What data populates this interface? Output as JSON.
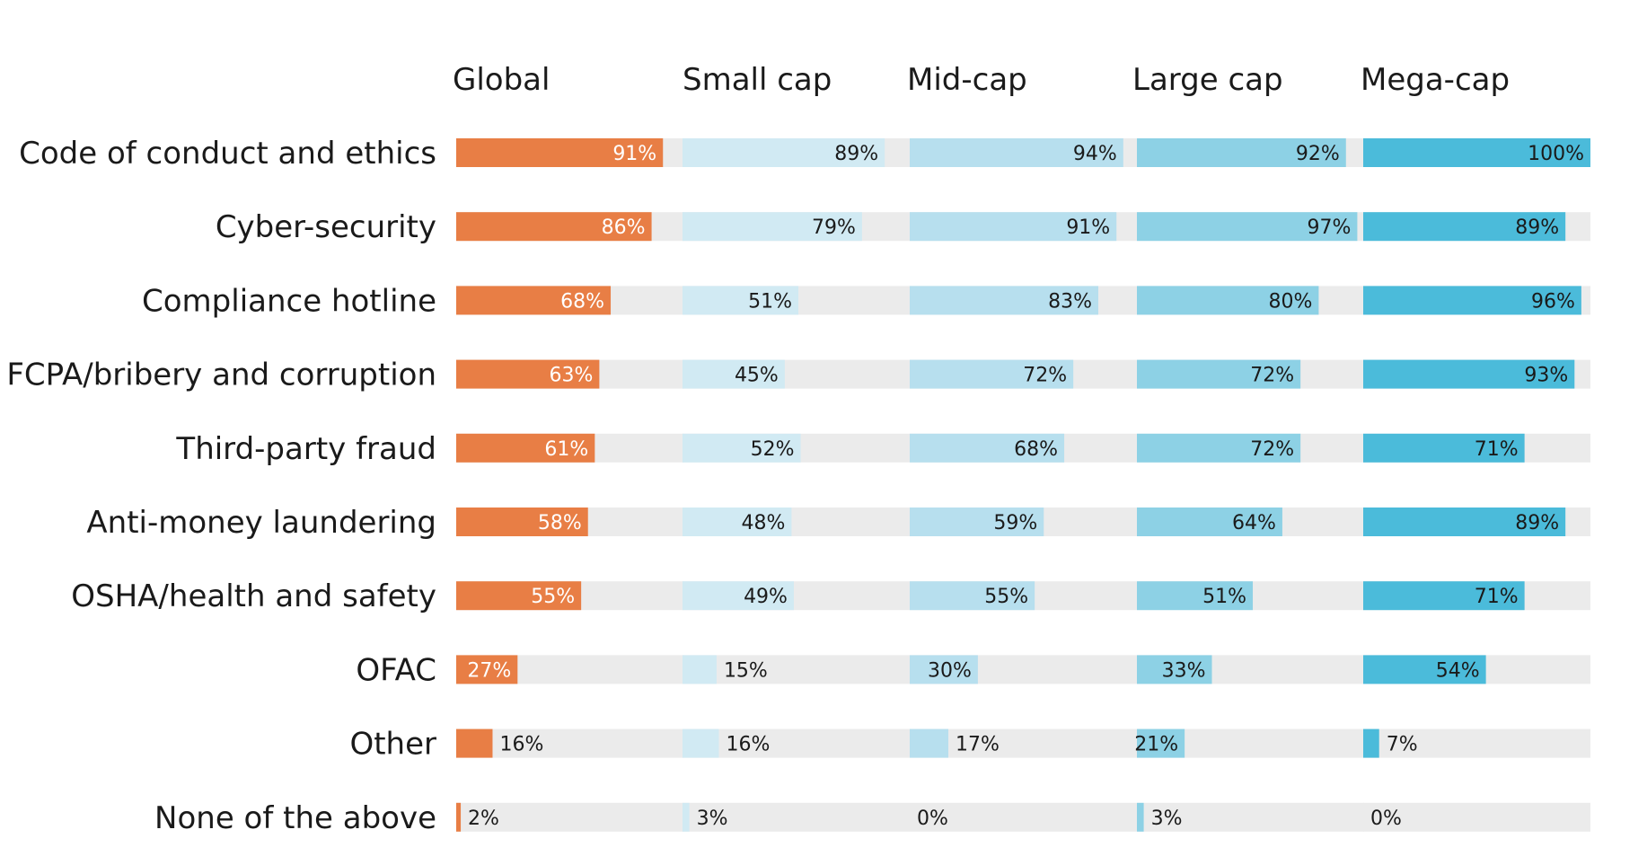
{
  "chart_data": {
    "type": "bar",
    "orientation": "horizontal",
    "grid": false,
    "legend": "none",
    "xlim": [
      0,
      100
    ],
    "unit": "%",
    "categories": [
      "Code of conduct and ethics",
      "Cyber-security",
      "Compliance hotline",
      "FCPA/bribery and corruption",
      "Third-party fraud",
      "Anti-money laundering",
      "OSHA/health and safety",
      "OFAC",
      "Other",
      "None of the above"
    ],
    "series": [
      {
        "name": "Global",
        "color": "#E87E45",
        "values": [
          91,
          86,
          68,
          63,
          61,
          58,
          55,
          27,
          16,
          2
        ]
      },
      {
        "name": "Small cap",
        "color": "#D1EAF3",
        "values": [
          89,
          79,
          51,
          45,
          52,
          48,
          49,
          15,
          16,
          3
        ]
      },
      {
        "name": "Mid-cap",
        "color": "#B7DFEE",
        "values": [
          94,
          91,
          83,
          72,
          68,
          59,
          55,
          30,
          17,
          0
        ]
      },
      {
        "name": "Large cap",
        "color": "#8DD1E5",
        "values": [
          92,
          97,
          80,
          72,
          72,
          64,
          51,
          33,
          21,
          3
        ]
      },
      {
        "name": "Mega-cap",
        "color": "#4BBBDA",
        "values": [
          100,
          89,
          96,
          93,
          71,
          89,
          71,
          54,
          7,
          0
        ]
      }
    ],
    "track_color": "#EBEBEB"
  }
}
